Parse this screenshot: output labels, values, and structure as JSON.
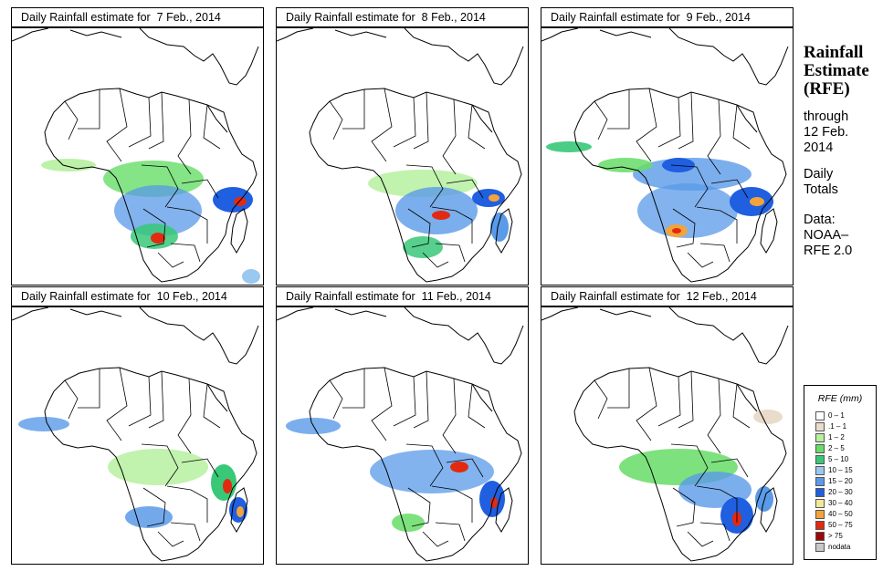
{
  "panels": [
    {
      "title": "Daily Rainfall estimate for  7 Feb., 2014"
    },
    {
      "title": "Daily Rainfall estimate for  8 Feb., 2014"
    },
    {
      "title": "Daily Rainfall estimate for  9 Feb., 2014"
    },
    {
      "title": "Daily Rainfall estimate for  10 Feb., 2014"
    },
    {
      "title": "Daily Rainfall estimate for  11 Feb., 2014"
    },
    {
      "title": "Daily Rainfall estimate for  12 Feb., 2014"
    }
  ],
  "sidebar": {
    "title_1": "Rainfall",
    "title_2": "Estimate",
    "title_3": "(RFE)",
    "through_1": "through",
    "through_2": "12 Feb.",
    "through_3": "2014",
    "daily_1": "Daily",
    "daily_2": "Totals",
    "data_1": "Data:",
    "data_2": "NOAA–",
    "data_3": "RFE 2.0"
  },
  "legend": {
    "title": "RFE (mm)",
    "items": [
      {
        "label": "0 – 1",
        "color": "#ffffff"
      },
      {
        "label": ".1 – 1",
        "color": "#e9dccb"
      },
      {
        "label": "1 – 2",
        "color": "#b6f0a0"
      },
      {
        "label": "2 – 5",
        "color": "#66dd66"
      },
      {
        "label": "5 – 10",
        "color": "#38c878"
      },
      {
        "label": "10 – 15",
        "color": "#99c8f0"
      },
      {
        "label": "15 – 20",
        "color": "#5a9ae8"
      },
      {
        "label": "20 – 30",
        "color": "#1f5fe0"
      },
      {
        "label": "30 – 40",
        "color": "#f3e89a"
      },
      {
        "label": "40 – 50",
        "color": "#f2a43a"
      },
      {
        "label": "50 – 75",
        "color": "#e22a10"
      },
      {
        "label": "> 75",
        "color": "#9c0808"
      },
      {
        "label": "nodata",
        "color": "#c8c8c8"
      }
    ]
  }
}
